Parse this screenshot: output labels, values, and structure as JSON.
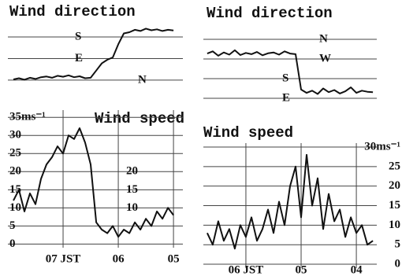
{
  "chart_data": [
    {
      "type": "line",
      "title": "Wind direction",
      "x": [
        7.9,
        7.8,
        7.7,
        7.6,
        7.5,
        7.4,
        7.3,
        7.2,
        7.1,
        7.0,
        6.9,
        6.8,
        6.7,
        6.6,
        6.5,
        6.4,
        6.3,
        6.2,
        6.1,
        6.0,
        5.9,
        5.8,
        5.7,
        5.6,
        5.5,
        5.4,
        5.3,
        5.2,
        5.1,
        5.0
      ],
      "values": [
        3,
        8,
        2,
        10,
        5,
        12,
        15,
        10,
        18,
        14,
        20,
        12,
        16,
        8,
        10,
        40,
        70,
        85,
        95,
        150,
        195,
        200,
        210,
        205,
        215,
        208,
        212,
        205,
        210,
        207
      ],
      "color": "#111111",
      "xlim": [
        8.0,
        4.83
      ],
      "ylim": [
        -43,
        236
      ],
      "yticks": [
        {
          "value": 0,
          "label": "N"
        },
        {
          "value": 90,
          "label": "E"
        },
        {
          "value": 180,
          "label": "S"
        }
      ],
      "grid": true
    },
    {
      "type": "line",
      "title": "Wind direction",
      "x": [
        6.7,
        6.6,
        6.5,
        6.4,
        6.3,
        6.2,
        6.1,
        6.0,
        5.9,
        5.8,
        5.7,
        5.6,
        5.5,
        5.4,
        5.3,
        5.2,
        5.1,
        5.0,
        4.9,
        4.8,
        4.7,
        4.6,
        4.5,
        4.4,
        4.3,
        4.2,
        4.1,
        4.0,
        3.9,
        3.8,
        3.7
      ],
      "values": [
        295,
        305,
        285,
        300,
        290,
        310,
        288,
        298,
        292,
        302,
        287,
        296,
        300,
        290,
        305,
        295,
        292,
        130,
        115,
        125,
        110,
        135,
        118,
        128,
        112,
        122,
        140,
        115,
        125,
        120,
        118
      ],
      "color": "#111111",
      "xlim": [
        6.77,
        3.63
      ],
      "ylim": [
        36,
        425
      ],
      "yticks": [
        {
          "value": 90,
          "label": "E"
        },
        {
          "value": 180,
          "label": "S"
        },
        {
          "value": 270,
          "label": "W"
        },
        {
          "value": 360,
          "label": "N"
        }
      ],
      "grid": true
    },
    {
      "type": "line",
      "title": "Wind speed",
      "x": [
        7.9,
        7.8,
        7.7,
        7.6,
        7.5,
        7.4,
        7.3,
        7.2,
        7.1,
        7.0,
        6.9,
        6.8,
        6.7,
        6.6,
        6.5,
        6.4,
        6.3,
        6.2,
        6.1,
        6.0,
        5.9,
        5.8,
        5.7,
        5.6,
        5.5,
        5.4,
        5.3,
        5.2,
        5.1,
        5.0
      ],
      "values": [
        12,
        15,
        9,
        14,
        11,
        18,
        22,
        24,
        27,
        25,
        30,
        29,
        32,
        28,
        22,
        6,
        4,
        3,
        5,
        2,
        4,
        3,
        6,
        4,
        7,
        5,
        9,
        7,
        10,
        8
      ],
      "color": "#111111",
      "xlim": [
        8.0,
        4.83
      ],
      "ylim": [
        -1,
        37
      ],
      "yticks": [
        0,
        5,
        10,
        15,
        20,
        25,
        30,
        {
          "value": 35,
          "label": "35ms⁻¹"
        }
      ],
      "y2lim": [
        -1,
        37
      ],
      "y2ticks": [
        10,
        15,
        20
      ],
      "xticks": [
        {
          "value": 7,
          "label": "07 JST"
        },
        {
          "value": 6,
          "label": "06"
        },
        {
          "value": 5,
          "label": "05"
        }
      ],
      "grid": true
    },
    {
      "type": "line",
      "title": "Wind speed",
      "x": [
        6.7,
        6.6,
        6.5,
        6.4,
        6.3,
        6.2,
        6.1,
        6.0,
        5.9,
        5.8,
        5.7,
        5.6,
        5.5,
        5.4,
        5.3,
        5.2,
        5.1,
        5.0,
        4.9,
        4.8,
        4.7,
        4.6,
        4.5,
        4.4,
        4.3,
        4.2,
        4.1,
        4.0,
        3.9,
        3.8,
        3.7
      ],
      "values": [
        8,
        5,
        11,
        6,
        9,
        4,
        10,
        7,
        12,
        6,
        9,
        14,
        8,
        16,
        10,
        20,
        25,
        12,
        28,
        15,
        22,
        9,
        18,
        11,
        14,
        7,
        12,
        8,
        10,
        5,
        6
      ],
      "color": "#111111",
      "xlim": [
        6.77,
        3.63
      ],
      "ylim": [
        -1,
        31
      ],
      "yticks": [
        0,
        5,
        10,
        15,
        20,
        25,
        {
          "value": 30,
          "label": "30ms⁻¹"
        }
      ],
      "xticks": [
        {
          "value": 6,
          "label": "06 JST"
        },
        {
          "value": 5,
          "label": "05"
        },
        {
          "value": 4,
          "label": "04"
        }
      ],
      "grid": true
    }
  ]
}
